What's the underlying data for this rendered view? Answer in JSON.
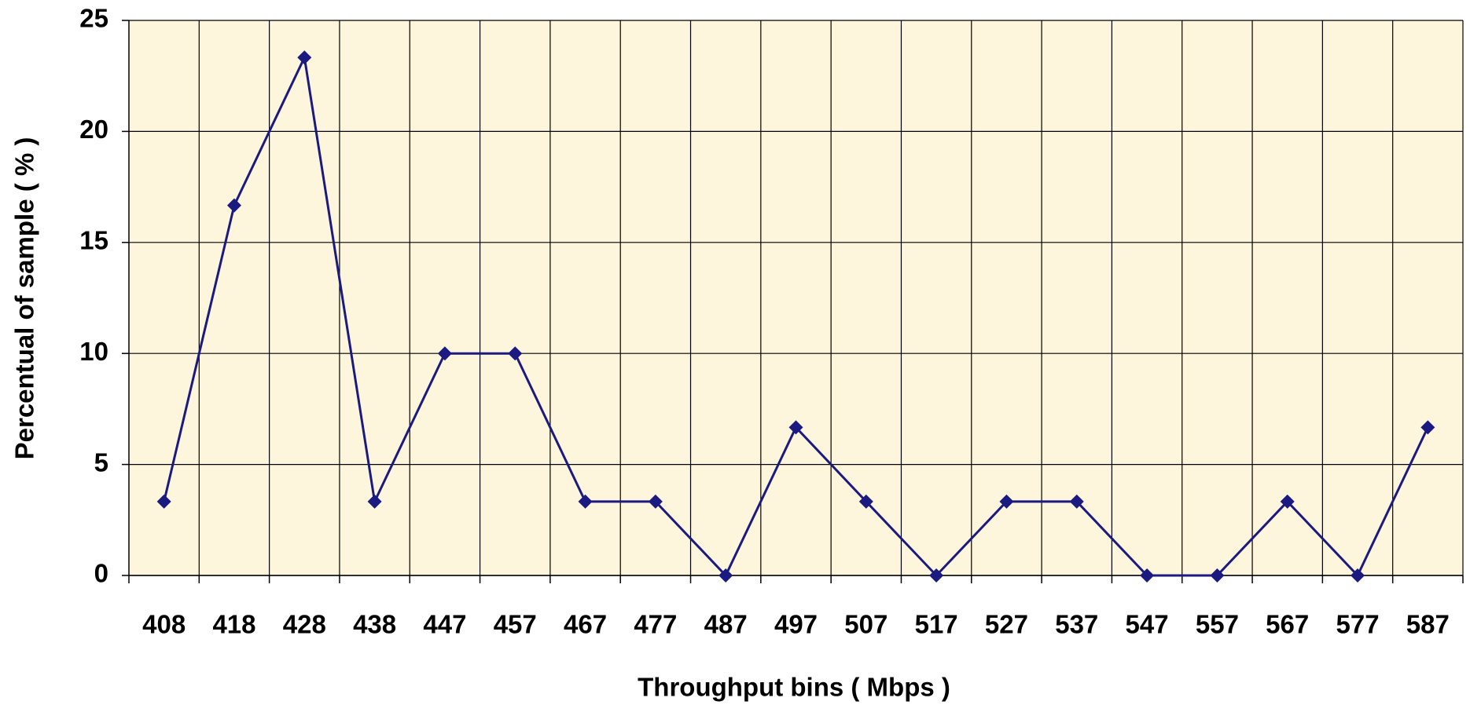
{
  "chart_data": {
    "type": "line",
    "x_label": "Throughput bins ( Mbps )",
    "y_label": "Percentual of sample ( % )",
    "categories": [
      "408",
      "418",
      "428",
      "438",
      "447",
      "457",
      "467",
      "477",
      "487",
      "497",
      "507",
      "517",
      "527",
      "537",
      "547",
      "557",
      "567",
      "577",
      "587"
    ],
    "series": [
      {
        "color": "#1a1a80",
        "values": [
          3.33,
          16.67,
          23.33,
          3.33,
          10,
          10,
          3.33,
          3.33,
          0,
          6.67,
          3.33,
          0,
          3.33,
          3.33,
          0,
          0,
          3.33,
          0,
          6.67
        ]
      }
    ],
    "ylim": [
      0,
      25
    ],
    "yticks": [
      0,
      5,
      10,
      15,
      20,
      25
    ],
    "grid": true,
    "background": "#fdf5dc"
  }
}
